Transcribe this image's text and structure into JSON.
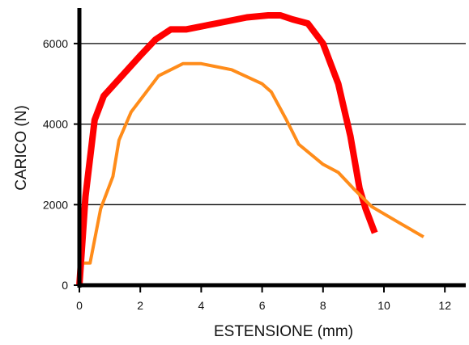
{
  "chart_data": {
    "type": "line",
    "title": "",
    "xlabel": "ESTENSIONE (mm)",
    "ylabel": "CARICO (N)",
    "xlim": [
      0,
      12.5
    ],
    "ylim": [
      0,
      6800
    ],
    "x_ticks": [
      0,
      2,
      4,
      6,
      8,
      10,
      12
    ],
    "x_tick_labels": [
      "0",
      "2",
      "4",
      "6",
      "8",
      "10",
      "12"
    ],
    "y_ticks": [
      0,
      2000,
      4000,
      6000
    ],
    "y_tick_labels": [
      "0",
      "2000",
      "4000",
      "6000"
    ],
    "grid": "horizontal",
    "legend": "none",
    "series": [
      {
        "color": "#ff0000",
        "x": [
          0.0,
          0.2,
          0.5,
          0.8,
          1.4,
          2.0,
          2.5,
          3.0,
          3.5,
          4.5,
          5.5,
          6.2,
          6.6,
          7.0,
          7.5,
          8.0,
          8.5,
          8.9,
          9.2,
          9.4,
          9.7
        ],
        "y": [
          0,
          2200,
          4100,
          4700,
          5200,
          5700,
          6100,
          6350,
          6350,
          6500,
          6650,
          6700,
          6700,
          6600,
          6500,
          6000,
          5000,
          3700,
          2400,
          1900,
          1300
        ]
      },
      {
        "color": "#ff8c1a",
        "x": [
          0.15,
          0.35,
          0.7,
          1.1,
          1.3,
          1.7,
          2.6,
          3.4,
          4.0,
          5.0,
          6.0,
          6.3,
          6.8,
          7.2,
          8.0,
          8.5,
          9.0,
          9.6,
          10.5,
          11.3
        ],
        "y": [
          550,
          550,
          1900,
          2700,
          3600,
          4300,
          5200,
          5500,
          5500,
          5350,
          5000,
          4800,
          4100,
          3500,
          3000,
          2800,
          2400,
          1950,
          1550,
          1200
        ]
      }
    ]
  }
}
